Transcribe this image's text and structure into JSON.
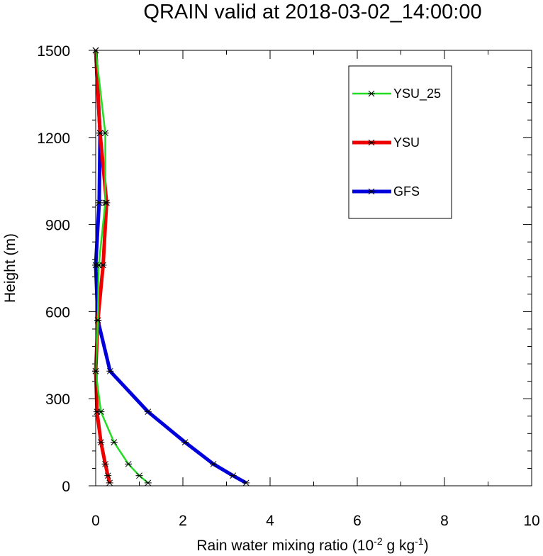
{
  "chart_data": {
    "type": "line",
    "title": "QRAIN valid at 2018-03-02_14:00:00",
    "xlabel": {
      "main": "Rain water mixing ratio (10",
      "exp1": "-2",
      "mid": " g kg",
      "exp2": "-1",
      "end": ")"
    },
    "ylabel": "Height (m)",
    "xlim": [
      0,
      10
    ],
    "ylim": [
      0,
      1500
    ],
    "xticks": [
      0,
      2,
      4,
      6,
      8,
      10
    ],
    "yticks": [
      0,
      300,
      600,
      900,
      1200,
      1500
    ],
    "xtick_labels": [
      "0",
      "2",
      "4",
      "6",
      "8",
      "10"
    ],
    "ytick_labels": [
      "0",
      "300",
      "600",
      "900",
      "1200",
      "1500"
    ],
    "legend_position": "top-right",
    "series": [
      {
        "name": "YSU_25",
        "color": "#22dd22",
        "points": [
          [
            1.2,
            10
          ],
          [
            1.0,
            35
          ],
          [
            0.75,
            75
          ],
          [
            0.42,
            150
          ],
          [
            0.12,
            255
          ],
          [
            0.0,
            395
          ],
          [
            0.05,
            570
          ],
          [
            0.07,
            760
          ],
          [
            0.22,
            975
          ],
          [
            0.22,
            1215
          ],
          [
            0.0,
            1500
          ]
        ]
      },
      {
        "name": "YSU",
        "color": "#ee0000",
        "points": [
          [
            0.32,
            10
          ],
          [
            0.28,
            35
          ],
          [
            0.22,
            75
          ],
          [
            0.12,
            150
          ],
          [
            0.03,
            255
          ],
          [
            0.0,
            395
          ],
          [
            0.05,
            570
          ],
          [
            0.17,
            760
          ],
          [
            0.25,
            975
          ],
          [
            0.1,
            1215
          ],
          [
            0.0,
            1500
          ]
        ]
      },
      {
        "name": "GFS",
        "color": "#0000dd",
        "points": [
          [
            3.45,
            10
          ],
          [
            3.15,
            35
          ],
          [
            2.7,
            75
          ],
          [
            2.05,
            150
          ],
          [
            1.2,
            255
          ],
          [
            0.33,
            395
          ],
          [
            0.05,
            570
          ],
          [
            0.0,
            760
          ],
          [
            0.08,
            975
          ],
          [
            0.1,
            1215
          ],
          [
            0.0,
            1500
          ]
        ]
      }
    ]
  }
}
